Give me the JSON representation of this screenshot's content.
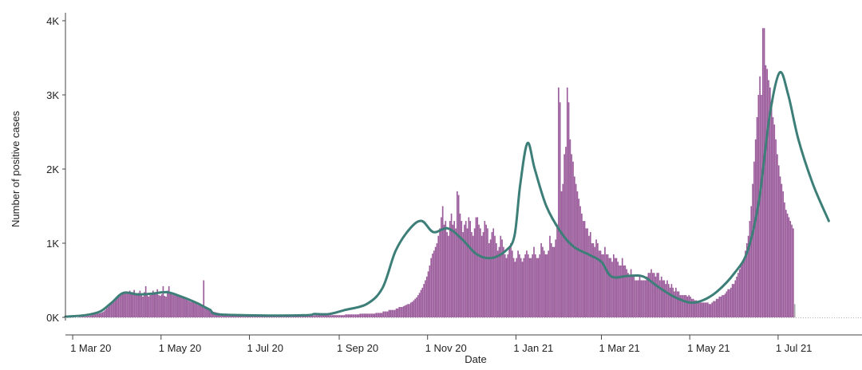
{
  "chart_data": {
    "type": "bar",
    "xlabel": "Date",
    "ylabel": "Number of positive cases",
    "x_range": [
      "2020-02-25",
      "2021-08-18"
    ],
    "ylim": [
      0,
      4000
    ],
    "y_ticks": [
      {
        "value": 0,
        "label": "0K"
      },
      {
        "value": 1000,
        "label": "1K"
      },
      {
        "value": 2000,
        "label": "2K"
      },
      {
        "value": 3000,
        "label": "3K"
      },
      {
        "value": 4000,
        "label": "4K"
      }
    ],
    "x_ticks": [
      {
        "date": "2020-03-01",
        "label": "1 Mar 20"
      },
      {
        "date": "2020-05-01",
        "label": "1 May 20"
      },
      {
        "date": "2020-07-01",
        "label": "1 Jul 20"
      },
      {
        "date": "2020-09-01",
        "label": "1 Sep 20"
      },
      {
        "date": "2020-11-01",
        "label": "1 Nov 20"
      },
      {
        "date": "2021-01-01",
        "label": "1 Jan 21"
      },
      {
        "date": "2021-03-01",
        "label": "1 Mar 21"
      },
      {
        "date": "2021-05-01",
        "label": "1 May 21"
      },
      {
        "date": "2021-07-01",
        "label": "1 Jul 21"
      }
    ],
    "grid": false,
    "colors": {
      "bars": "#9b5c9b",
      "bars_incomplete": "#aaaaaa",
      "average_line": "#3d7f78",
      "axis": "#444444"
    },
    "bars": {
      "start_date": "2020-02-25",
      "values": [
        0,
        0,
        0,
        0,
        0,
        0,
        0,
        0,
        0,
        5,
        5,
        10,
        10,
        10,
        15,
        20,
        20,
        25,
        30,
        35,
        40,
        45,
        50,
        55,
        60,
        70,
        80,
        100,
        120,
        140,
        160,
        190,
        210,
        230,
        250,
        270,
        290,
        300,
        310,
        320,
        330,
        340,
        350,
        330,
        360,
        320,
        340,
        370,
        320,
        300,
        330,
        360,
        300,
        280,
        340,
        420,
        300,
        280,
        300,
        330,
        360,
        310,
        320,
        380,
        300,
        290,
        310,
        420,
        290,
        280,
        360,
        420,
        330,
        320,
        300,
        300,
        300,
        290,
        300,
        290,
        280,
        270,
        260,
        240,
        230,
        220,
        210,
        220,
        200,
        190,
        180,
        170,
        160,
        160,
        140,
        500,
        130,
        120,
        110,
        100,
        90,
        85,
        75,
        70,
        65,
        60,
        55,
        50,
        45,
        40,
        35,
        30,
        30,
        30,
        30,
        30,
        30,
        30,
        30,
        30,
        30,
        30,
        30,
        30,
        30,
        30,
        30,
        30,
        30,
        30,
        30,
        30,
        30,
        30,
        30,
        30,
        30,
        25,
        25,
        25,
        25,
        25,
        25,
        25,
        25,
        25,
        25,
        25,
        25,
        25,
        25,
        25,
        25,
        25,
        25,
        25,
        25,
        25,
        25,
        25,
        25,
        25,
        25,
        25,
        25,
        25,
        25,
        25,
        25,
        25,
        25,
        25,
        30,
        30,
        30,
        30,
        30,
        30,
        30,
        30,
        30,
        30,
        30,
        30,
        30,
        30,
        30,
        30,
        30,
        30,
        30,
        30,
        30,
        40,
        40,
        40,
        40,
        40,
        40,
        40,
        40,
        40,
        40,
        50,
        50,
        50,
        50,
        50,
        50,
        50,
        50,
        50,
        50,
        50,
        60,
        60,
        60,
        60,
        60,
        80,
        80,
        80,
        80,
        100,
        100,
        100,
        100,
        100,
        120,
        120,
        140,
        140,
        140,
        150,
        160,
        170,
        180,
        180,
        200,
        210,
        230,
        250,
        270,
        300,
        330,
        370,
        400,
        450,
        500,
        550,
        620,
        700,
        800,
        860,
        900,
        950,
        1000,
        1100,
        1200,
        1350,
        1500,
        1250,
        1300,
        1150,
        1100,
        1300,
        1400,
        1250,
        1300,
        1200,
        1700,
        1650,
        1400,
        1300,
        1150,
        1250,
        1300,
        1200,
        1350,
        1300,
        1150,
        1100,
        1200,
        1350,
        1350,
        1250,
        1200,
        1100,
        1150,
        1300,
        1250,
        1200,
        1000,
        1050,
        1150,
        1200,
        1100,
        1000,
        900,
        950,
        1100,
        1050,
        950,
        850,
        800,
        850,
        950,
        1000,
        900,
        800,
        750,
        800,
        900,
        850,
        800,
        750,
        800,
        850,
        900,
        850,
        800,
        800,
        850,
        950,
        850,
        800,
        800,
        850,
        1000,
        950,
        900,
        850,
        850,
        900,
        1100,
        1000,
        950,
        950,
        1050,
        1250,
        3100,
        2900,
        1700,
        1800,
        2200,
        2300,
        3100,
        2900,
        2400,
        2200,
        2100,
        1900,
        1800,
        1700,
        1600,
        1500,
        1400,
        1300,
        1300,
        1200,
        1200,
        1100,
        1150,
        1000,
        1000,
        950,
        1050,
        1000,
        900,
        900,
        850,
        850,
        950,
        850,
        850,
        800,
        800,
        750,
        850,
        800,
        800,
        750,
        700,
        700,
        800,
        700,
        700,
        650,
        600,
        550,
        650,
        550,
        550,
        500,
        500,
        500,
        550,
        500,
        500,
        500,
        500,
        550,
        600,
        600,
        650,
        600,
        600,
        550,
        600,
        600,
        500,
        550,
        500,
        500,
        450,
        500,
        450,
        400,
        450,
        400,
        350,
        400,
        350,
        350,
        300,
        300,
        300,
        300,
        300,
        280,
        300,
        280,
        250,
        250,
        230,
        230,
        210,
        210,
        200,
        200,
        200,
        200,
        200,
        200,
        180,
        180,
        200,
        220,
        220,
        250,
        250,
        280,
        280,
        300,
        300,
        320,
        350,
        380,
        380,
        400,
        450,
        450,
        500,
        550,
        600,
        650,
        700,
        750,
        800,
        900,
        1000,
        1100,
        1300,
        1500,
        1800,
        2100,
        2400,
        2700,
        3000,
        3250,
        3000,
        3900,
        3900,
        3400,
        3350,
        3200,
        3100,
        2900,
        2700,
        2600,
        2400,
        2200,
        2050,
        1900,
        1800,
        1700,
        1550,
        1450,
        1400,
        1350,
        1300,
        1250,
        1200,
        180
      ]
    },
    "series": [
      {
        "type": "line",
        "points": [
          [
            "2020-02-25",
            10
          ],
          [
            "2020-03-10",
            30
          ],
          [
            "2020-03-20",
            80
          ],
          [
            "2020-03-28",
            200
          ],
          [
            "2020-04-05",
            330
          ],
          [
            "2020-04-15",
            310
          ],
          [
            "2020-04-25",
            320
          ],
          [
            "2020-05-05",
            340
          ],
          [
            "2020-05-15",
            280
          ],
          [
            "2020-05-25",
            200
          ],
          [
            "2020-06-01",
            130
          ],
          [
            "2020-06-04",
            100
          ],
          [
            "2020-06-10",
            40
          ],
          [
            "2020-07-15",
            25
          ],
          [
            "2020-08-10",
            30
          ],
          [
            "2020-08-15",
            45
          ],
          [
            "2020-08-25",
            45
          ],
          [
            "2020-09-05",
            100
          ],
          [
            "2020-09-20",
            180
          ],
          [
            "2020-10-01",
            400
          ],
          [
            "2020-10-10",
            900
          ],
          [
            "2020-10-20",
            1200
          ],
          [
            "2020-10-28",
            1300
          ],
          [
            "2020-11-05",
            1150
          ],
          [
            "2020-11-15",
            1200
          ],
          [
            "2020-11-25",
            1050
          ],
          [
            "2020-12-05",
            850
          ],
          [
            "2020-12-15",
            800
          ],
          [
            "2020-12-25",
            900
          ],
          [
            "2020-12-31",
            1100
          ],
          [
            "2021-01-04",
            1800
          ],
          [
            "2021-01-09",
            2350
          ],
          [
            "2021-01-14",
            2000
          ],
          [
            "2021-01-22",
            1500
          ],
          [
            "2021-02-01",
            1150
          ],
          [
            "2021-02-10",
            950
          ],
          [
            "2021-02-20",
            850
          ],
          [
            "2021-03-01",
            750
          ],
          [
            "2021-03-08",
            550
          ],
          [
            "2021-03-20",
            560
          ],
          [
            "2021-03-30",
            550
          ],
          [
            "2021-04-10",
            400
          ],
          [
            "2021-04-20",
            280
          ],
          [
            "2021-05-01",
            200
          ],
          [
            "2021-05-10",
            230
          ],
          [
            "2021-05-20",
            350
          ],
          [
            "2021-06-01",
            600
          ],
          [
            "2021-06-10",
            900
          ],
          [
            "2021-06-18",
            1600
          ],
          [
            "2021-06-25",
            2700
          ],
          [
            "2021-07-02",
            3300
          ],
          [
            "2021-07-08",
            3000
          ],
          [
            "2021-07-15",
            2400
          ],
          [
            "2021-07-25",
            1800
          ],
          [
            "2021-08-05",
            1300
          ]
        ]
      }
    ]
  }
}
